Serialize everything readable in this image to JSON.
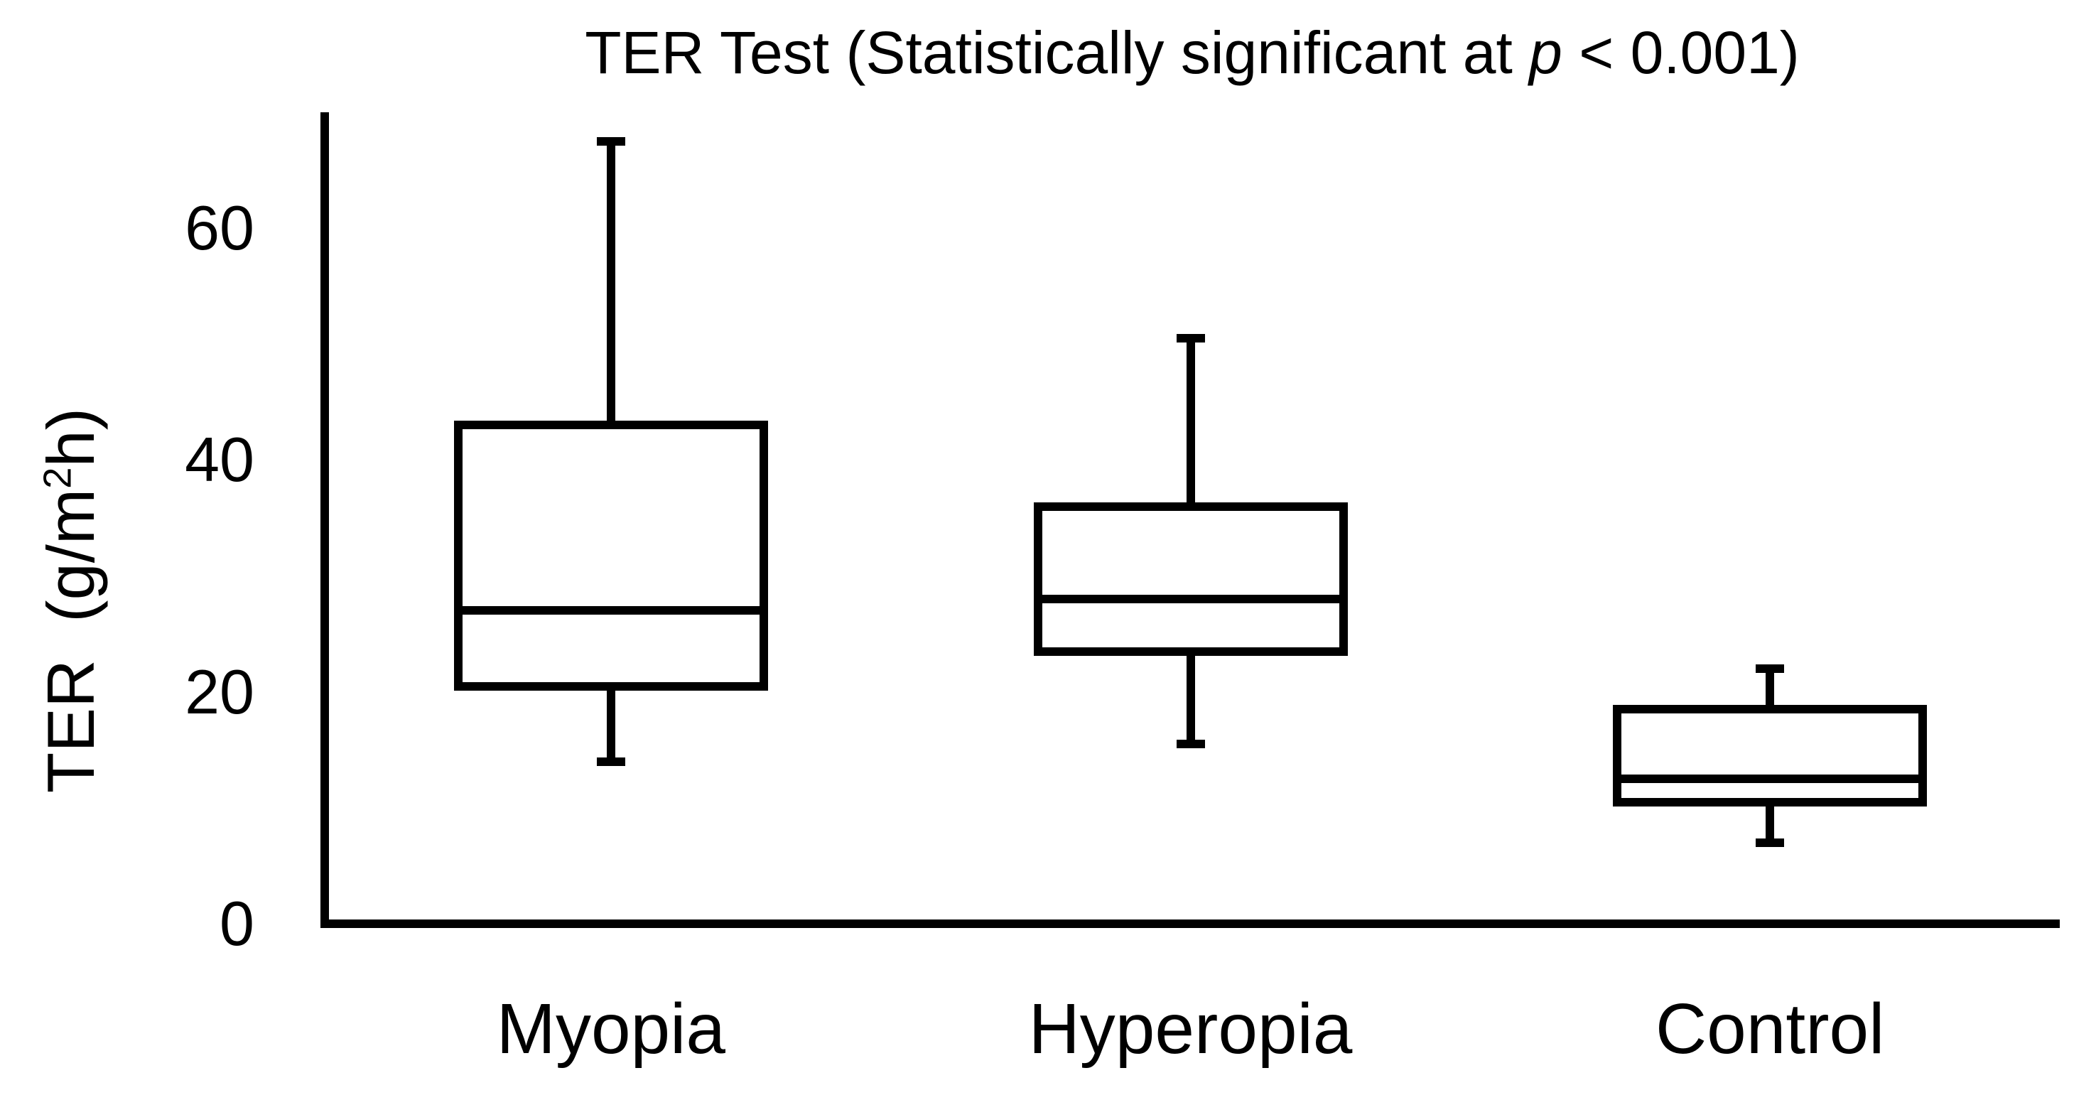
{
  "chart_data": {
    "type": "box",
    "title": "TER Test (Statistically significant at p < 0.001)",
    "title_parts": {
      "pre": "TER Test (Statistically significant at ",
      "italic": "p",
      "post": " < 0.001)"
    },
    "ylabel": "TER (g/m2h)",
    "ylabel_parts": {
      "pre": "TER  (g/m",
      "sup": "2",
      "post": "h)"
    },
    "xlabel": "",
    "categories": [
      "Myopia",
      "Hyperopia",
      "Control"
    ],
    "yticks": [
      0,
      20,
      40,
      60
    ],
    "ylim": [
      0,
      70
    ],
    "grid": false,
    "legend": false,
    "series": [
      {
        "name": "Myopia",
        "min": 14,
        "q1": 20.5,
        "median": 27,
        "q3": 43,
        "max": 67.5
      },
      {
        "name": "Hyperopia",
        "min": 15.5,
        "q1": 23.5,
        "median": 28,
        "q3": 36,
        "max": 50.5
      },
      {
        "name": "Control",
        "min": 7,
        "q1": 10.5,
        "median": 12.5,
        "q3": 18.5,
        "max": 22
      }
    ],
    "colors": {
      "stroke": "#000000",
      "box_fill": "#ffffff",
      "background": "#ffffff",
      "text": "#000000"
    }
  }
}
